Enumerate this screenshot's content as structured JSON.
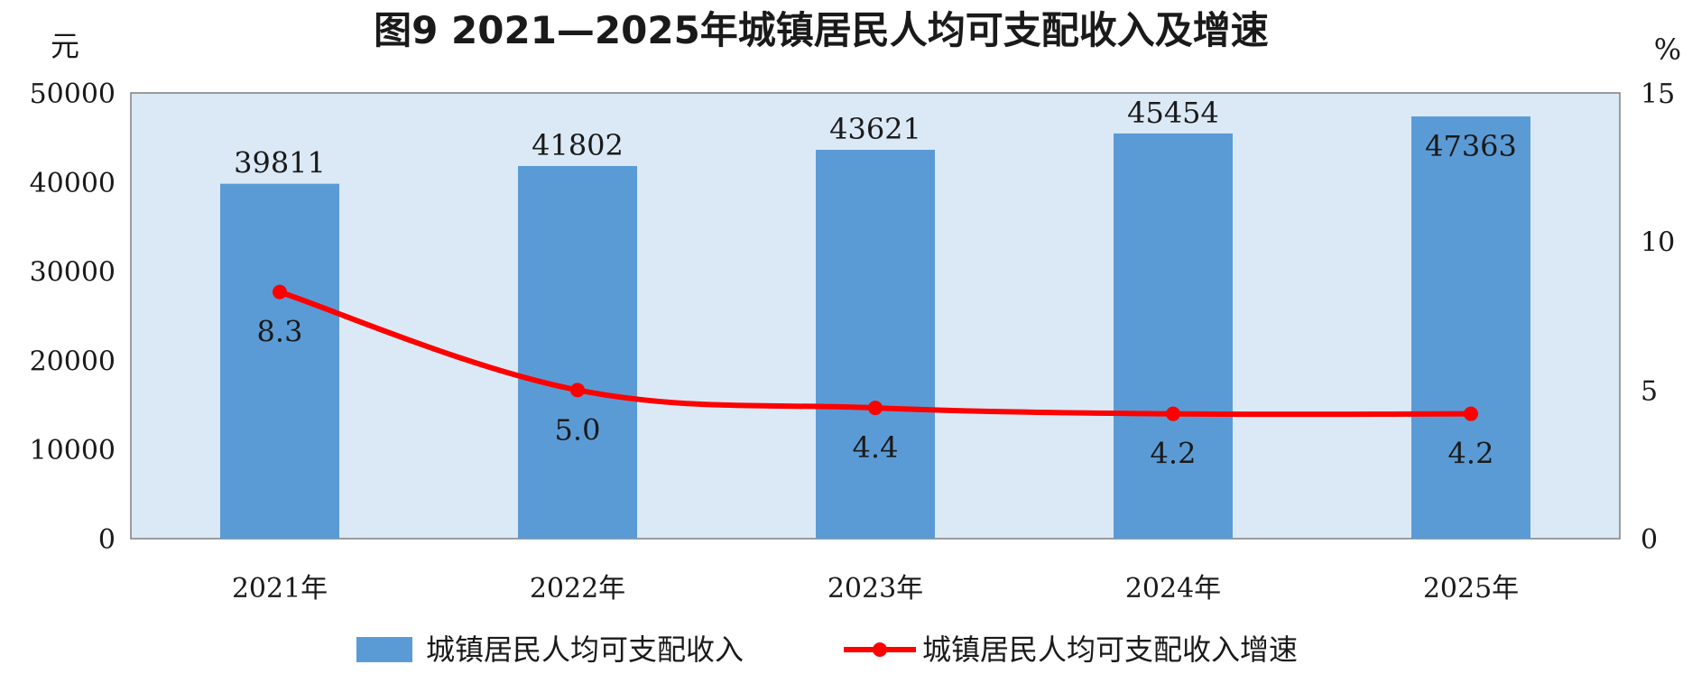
{
  "chart_data": {
    "type": "bar",
    "title": "图9  2021—2025年城镇居民人均可支配收入及增速",
    "categories": [
      "2021年",
      "2022年",
      "2023年",
      "2024年",
      "2025年"
    ],
    "series": [
      {
        "name": "城镇居民人均可支配收入",
        "type": "bar",
        "axis": "left",
        "values": [
          39811,
          41802,
          43621,
          45454,
          47363
        ],
        "color": "#5b9bd5"
      },
      {
        "name": "城镇居民人均可支配收入增速",
        "type": "line",
        "axis": "right",
        "values": [
          8.3,
          5.0,
          4.4,
          4.2,
          4.2
        ],
        "labels": [
          "8.3",
          "5.0",
          "4.4",
          "4.2",
          "4.2"
        ],
        "color": "#ff0000"
      }
    ],
    "y_left": {
      "unit": "元",
      "ylim": [
        0,
        50000
      ],
      "ticks": [
        "0",
        "10000",
        "20000",
        "30000",
        "40000",
        "50000"
      ]
    },
    "y_right": {
      "unit": "%",
      "ylim": [
        0,
        15
      ],
      "ticks": [
        "0",
        "5",
        "10",
        "15"
      ]
    },
    "plot_background": "#dbe9f6",
    "legend_position": "bottom",
    "grid": false
  }
}
